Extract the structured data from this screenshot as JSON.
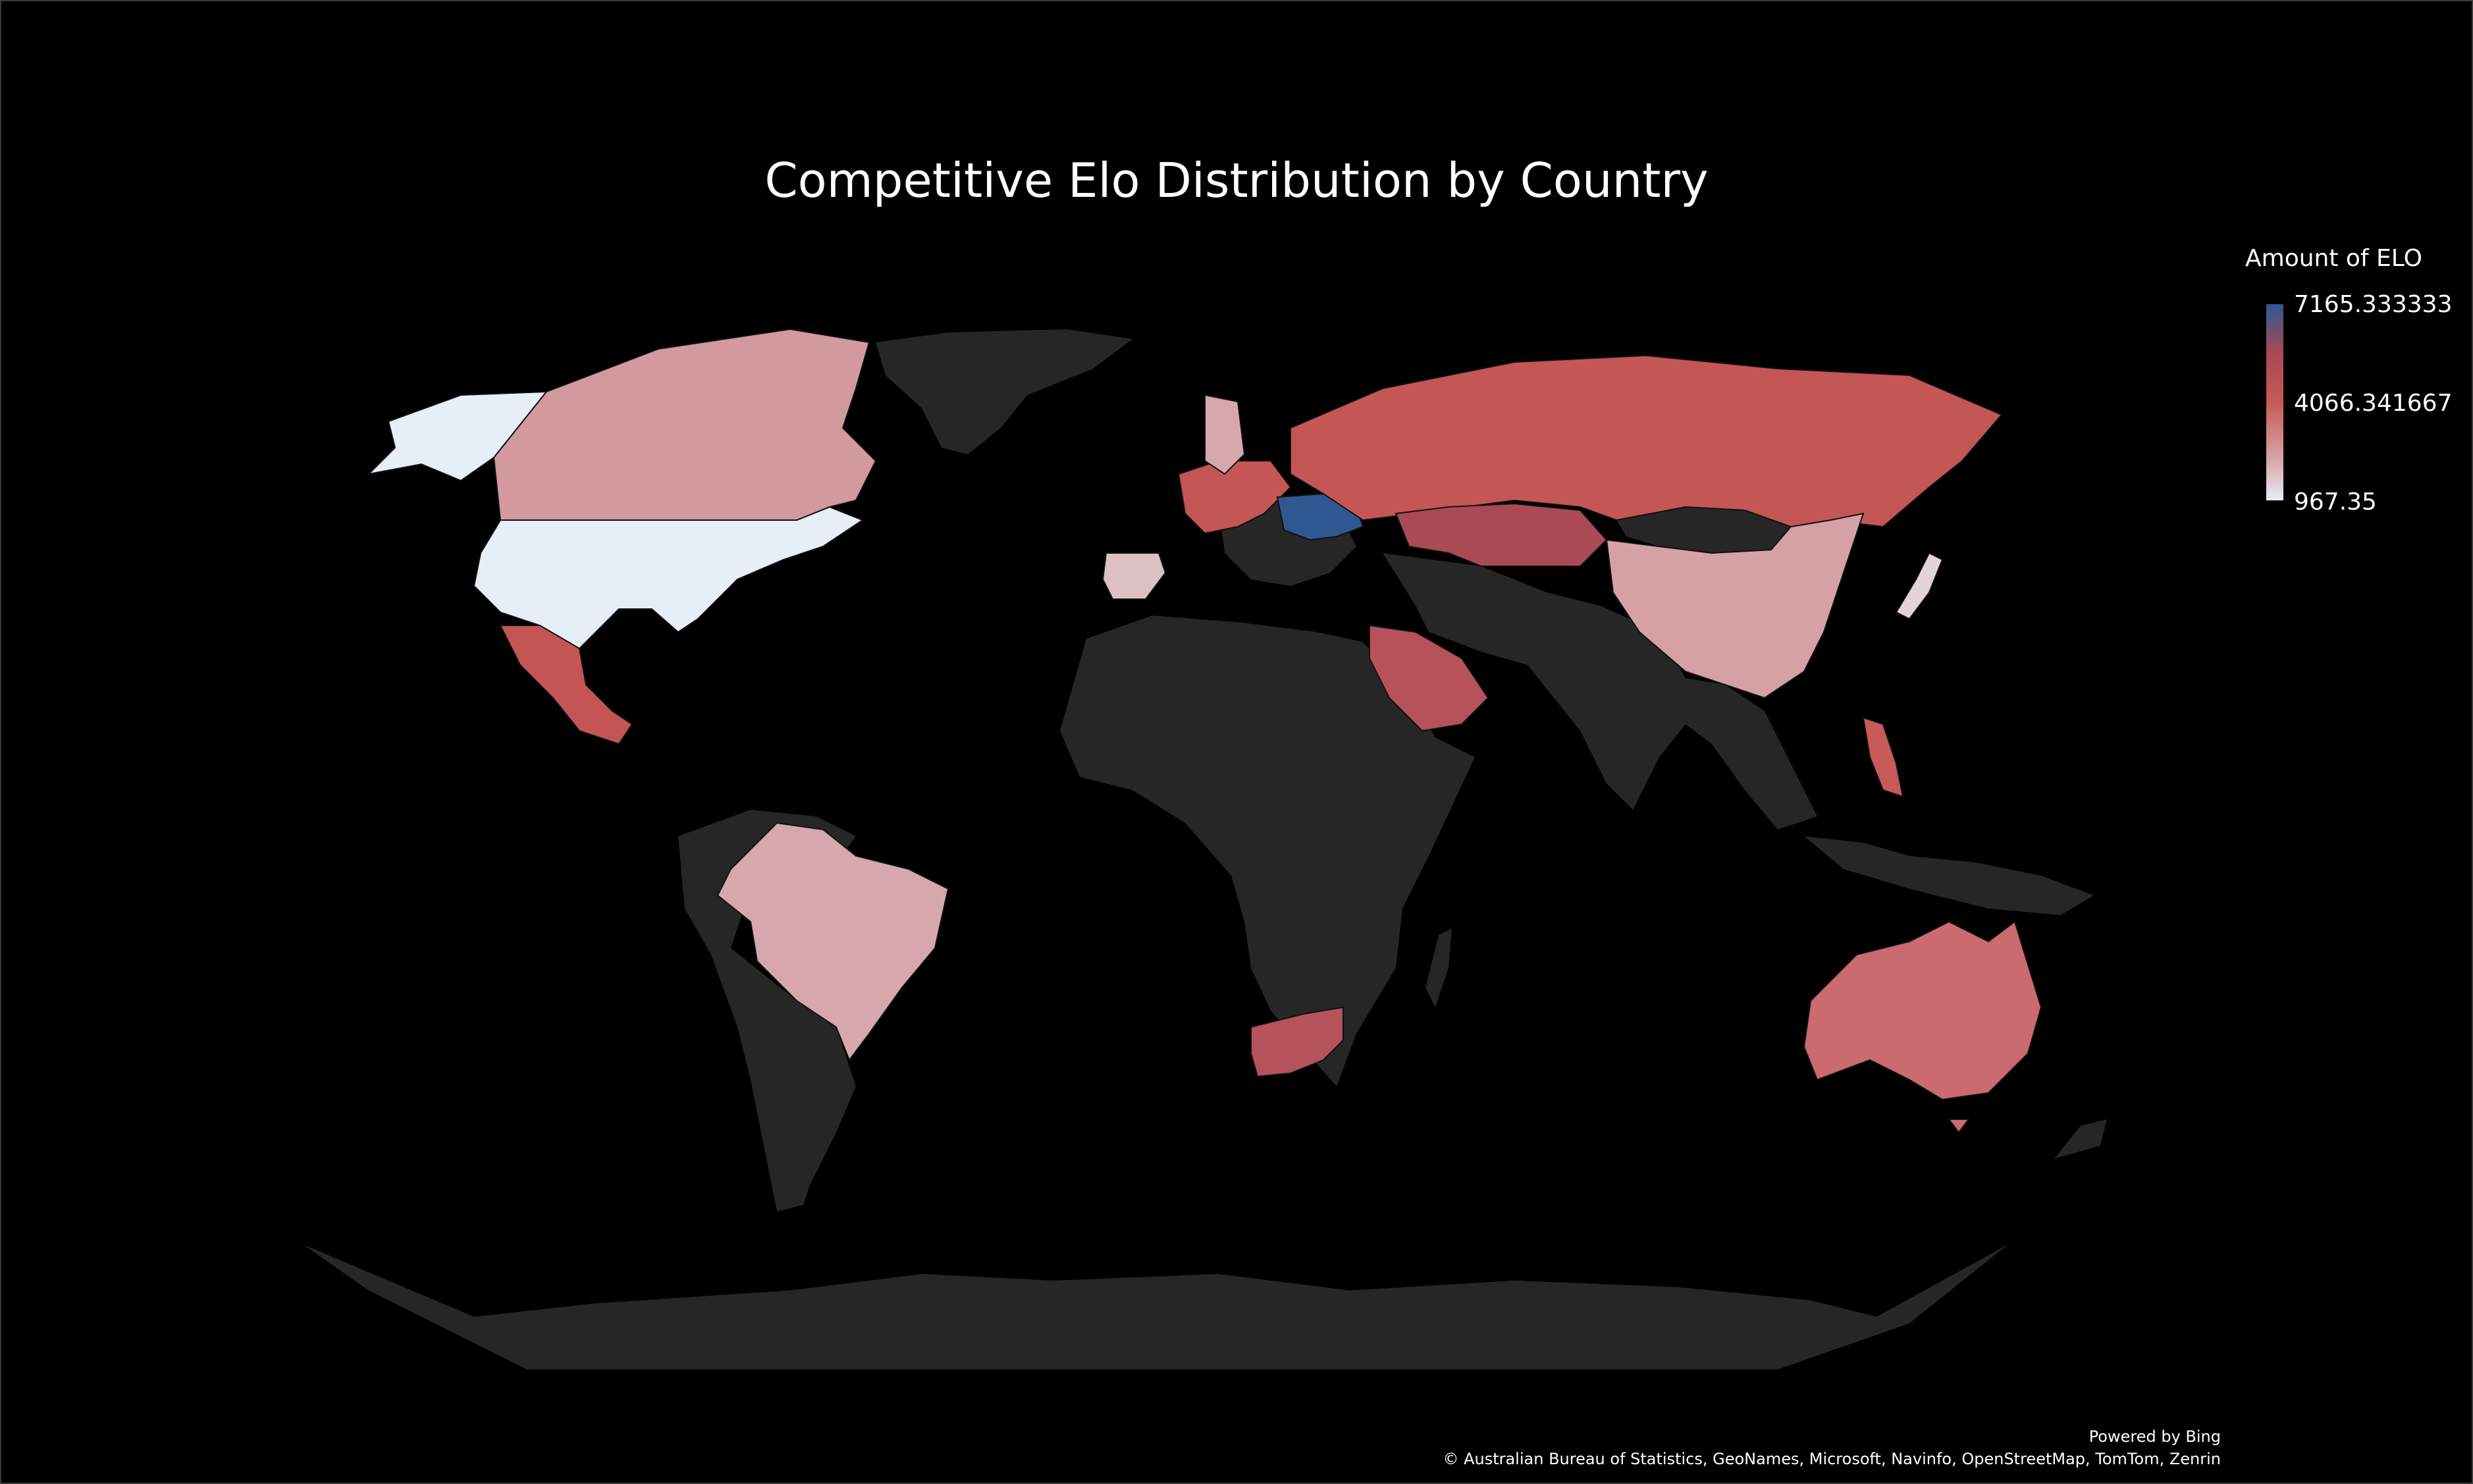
{
  "title": "Competitive Elo Distribution by Country",
  "legend": {
    "title": "Amount of ELO",
    "max_label": "7165.333333",
    "mid_label": "4066.341667",
    "min_label": "967.35",
    "max_color": "#2f5792",
    "mid_color": "#c65a55",
    "min_color": "#e6eef7"
  },
  "footer": {
    "powered_by": "Powered by Bing",
    "attribution": "© Australian Bureau of Statistics, GeoNames, Microsoft, Navinfo, OpenStreetMap, TomTom, Zenrin"
  },
  "colors": {
    "background": "#000000",
    "land_no_data": "#262626",
    "country_border": "#111111"
  },
  "chart_data": {
    "type": "choropleth",
    "measure": "Amount of ELO",
    "scale": {
      "min": 967.35,
      "mid": 4066.341667,
      "max": 7165.333333
    },
    "regions": [
      {
        "name": "Ukraine",
        "color": "#2f5792"
      },
      {
        "name": "Russia",
        "color": "#c45656"
      },
      {
        "name": "Kazakhstan",
        "color": "#a94a55"
      },
      {
        "name": "Saudi Arabia",
        "color": "#b7525a"
      },
      {
        "name": "South Africa",
        "color": "#b5525c"
      },
      {
        "name": "Mexico",
        "color": "#c55555"
      },
      {
        "name": "Philippines",
        "color": "#c95a5a"
      },
      {
        "name": "Australia",
        "color": "#cb6a6f"
      },
      {
        "name": "Canada",
        "color": "#d29a9e"
      },
      {
        "name": "China",
        "color": "#d5a1a5"
      },
      {
        "name": "Brazil",
        "color": "#d6a8ae"
      },
      {
        "name": "Spain",
        "color": "#dcc0c4"
      },
      {
        "name": "Japan",
        "color": "#e3d3d8"
      },
      {
        "name": "United States",
        "color": "#e6eef7"
      }
    ]
  }
}
